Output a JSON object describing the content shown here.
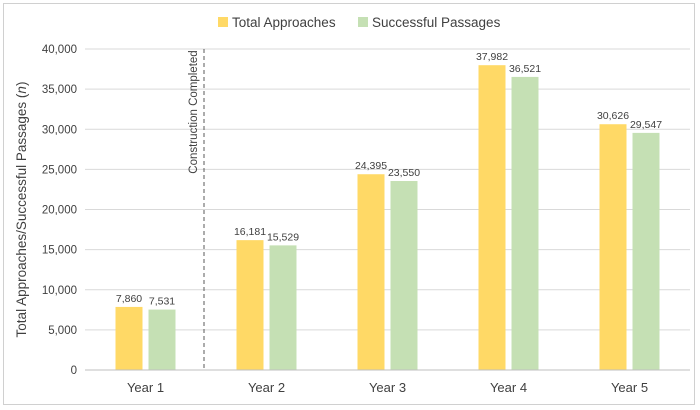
{
  "chart_data": {
    "type": "bar",
    "categories": [
      "Year 1",
      "Year 2",
      "Year 3",
      "Year 4",
      "Year 5"
    ],
    "series": [
      {
        "name": "Total Approaches",
        "values": [
          7860,
          16181,
          24395,
          37982,
          30626
        ],
        "color": "#FFD966"
      },
      {
        "name": "Successful Passages",
        "values": [
          7531,
          15529,
          23550,
          36521,
          29547
        ],
        "color": "#C5E0B4"
      }
    ],
    "data_labels": [
      [
        "7,860",
        "16,181",
        "24,395",
        "37,982",
        "30,626"
      ],
      [
        "7,531",
        "15,529",
        "23,550",
        "36,521",
        "29,547"
      ]
    ],
    "title": "",
    "xlabel": "",
    "ylabel": "Total Approaches/Successful Passages (",
    "ylabel_italic": "n",
    "ylabel_suffix": ")",
    "ylim": [
      0,
      40000
    ],
    "yticks": [
      0,
      5000,
      10000,
      15000,
      20000,
      25000,
      30000,
      35000,
      40000
    ],
    "ytick_labels": [
      "0",
      "5,000",
      "10,000",
      "15,000",
      "20,000",
      "25,000",
      "30,000",
      "35,000",
      "40,000"
    ],
    "grid": true,
    "gridline_color": "#d9d9d9",
    "axis_color": "#bfbfbf",
    "legend_position": "top-center",
    "annotation": {
      "text": "Construction Completed",
      "between_categories": [
        "Year 1",
        "Year 2"
      ],
      "line_style": "dashed",
      "line_color": "#595959"
    }
  }
}
